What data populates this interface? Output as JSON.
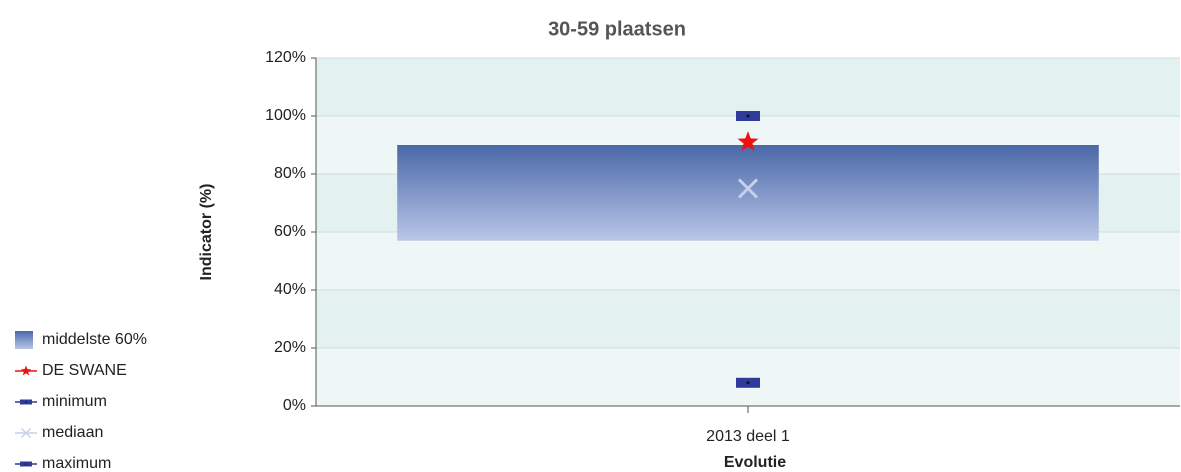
{
  "chart_data": {
    "type": "range-bar",
    "title": "30-59 plaatsen",
    "y_label": "Indicator (%)",
    "x_label": "Evolutie",
    "categories": [
      "2013 deel 1"
    ],
    "range": {
      "name": "middelste 60%",
      "color": "#4a68a8",
      "low": [
        57
      ],
      "high": [
        90
      ]
    },
    "series": [
      {
        "name": "DE SWANE",
        "color": "#ee1111",
        "marker": "star",
        "values": [
          91
        ]
      },
      {
        "name": "minimum",
        "color": "#2e3b9a",
        "marker": "square",
        "values": [
          8
        ]
      },
      {
        "name": "mediaan",
        "color": "#c8d0ec",
        "marker": "x",
        "values": [
          75
        ]
      },
      {
        "name": "maximum",
        "color": "#2e3b9a",
        "marker": "square",
        "values": [
          100
        ]
      }
    ],
    "ylim": [
      0,
      120
    ],
    "yticks": [
      {
        "value": 0,
        "label": "0%"
      },
      {
        "value": 20,
        "label": "20%"
      },
      {
        "value": 40,
        "label": "40%"
      },
      {
        "value": 60,
        "label": "60%"
      },
      {
        "value": 80,
        "label": "80%"
      },
      {
        "value": 100,
        "label": "100%"
      },
      {
        "value": 120,
        "label": "120%"
      }
    ],
    "grid": true
  }
}
